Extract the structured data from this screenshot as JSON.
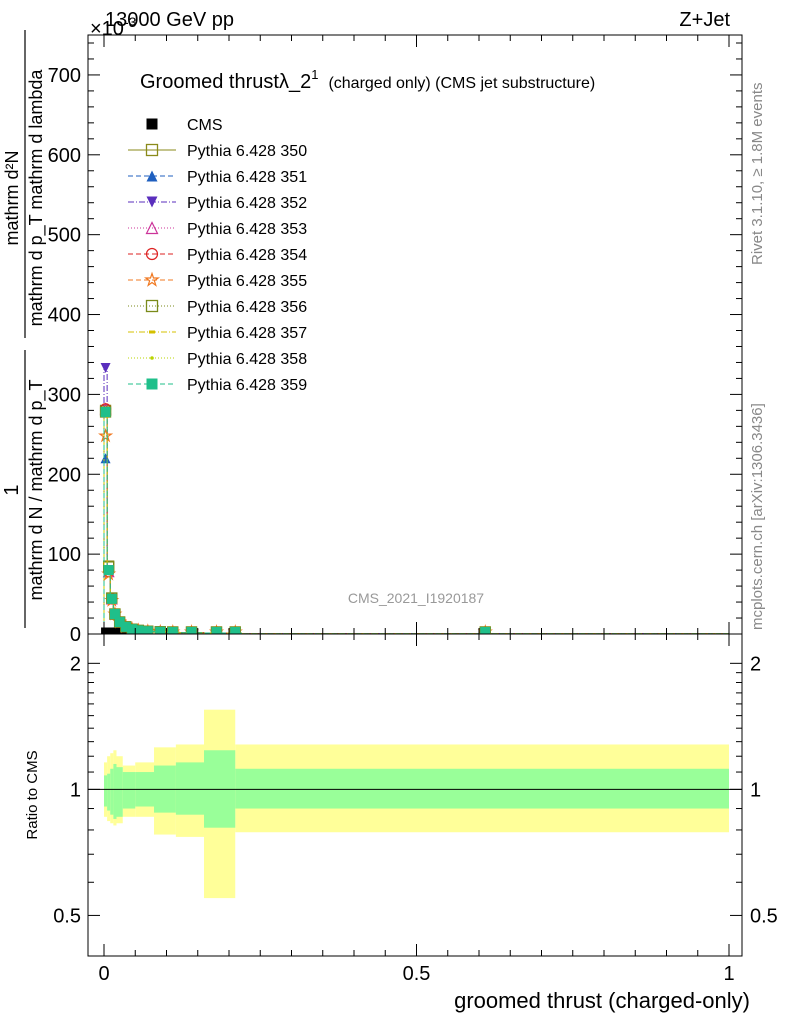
{
  "header": {
    "left": "13000 GeV pp",
    "right": "Z+Jet",
    "y_multiplier": "×10",
    "y_multiplier_exp": "-3"
  },
  "side_text": {
    "rivet": "Rivet 3.1.10, ≥ 1.8M events",
    "mcplots": "mcplots.cern.ch [arXiv:1306.3436]"
  },
  "watermark": "CMS_2021_I1920187",
  "legend": {
    "title": "Groomed thrustλ_2",
    "title_sup": "1",
    "title_suffix": "(charged only) (CMS jet substructure)",
    "entries": [
      {
        "label": "CMS",
        "color": "#000000",
        "marker": "square-filled",
        "dash": "none"
      },
      {
        "label": "Pythia 6.428 350",
        "color": "#8a8a1a",
        "marker": "square-open",
        "dash": "solid"
      },
      {
        "label": "Pythia 6.428 351",
        "color": "#1f5fbf",
        "marker": "triangle-up",
        "dash": "dashed"
      },
      {
        "label": "Pythia 6.428 352",
        "color": "#5a2ebd",
        "marker": "triangle-down",
        "dash": "dashdot"
      },
      {
        "label": "Pythia 6.428 353",
        "color": "#cc3399",
        "marker": "triangle-open",
        "dash": "dotted"
      },
      {
        "label": "Pythia 6.428 354",
        "color": "#dd2222",
        "marker": "circle-open",
        "dash": "dashed"
      },
      {
        "label": "Pythia 6.428 355",
        "color": "#f07820",
        "marker": "star",
        "dash": "dashed"
      },
      {
        "label": "Pythia 6.428 356",
        "color": "#7a8a1a",
        "marker": "square-open",
        "dash": "dotted"
      },
      {
        "label": "Pythia 6.428 357",
        "color": "#d4c000",
        "marker": "dash",
        "dash": "dashdot"
      },
      {
        "label": "Pythia 6.428 358",
        "color": "#b8d400",
        "marker": "dot",
        "dash": "dotted"
      },
      {
        "label": "Pythia 6.428 359",
        "color": "#1fbf8a",
        "marker": "square-filled",
        "dash": "dashed"
      }
    ]
  },
  "chart_data": [
    {
      "type": "scatter",
      "panel": "main",
      "ylabel": "1 / mathrm d N / mathrm d p_T mathrm d^2N / mathrm d p_T mathrm d lambda",
      "ylabel_numerator": "1",
      "ylabel_denominator": "mathrm d N / mathrm d p_T",
      "ylabel_right_num": "mathrm d²N",
      "ylabel_right_den": "mathrm d p_T mathrm d lambda",
      "xlim": [
        0,
        1
      ],
      "ylim": [
        0,
        750
      ],
      "y_ticks": [
        "0",
        "100",
        "200",
        "300",
        "400",
        "500",
        "600",
        "700"
      ],
      "y_tick_values": [
        0,
        100,
        200,
        300,
        400,
        500,
        600,
        700
      ],
      "x_ticks_values": [
        0,
        0.5,
        1
      ],
      "bin_edges": [
        0,
        0.005,
        0.01,
        0.015,
        0.02,
        0.03,
        0.04,
        0.05,
        0.06,
        0.08,
        0.1,
        0.12,
        0.16,
        0.2,
        0.22,
        1.0
      ],
      "series": [
        {
          "name": "CMS",
          "values": [
            0.5,
            0.4,
            0.3,
            0.2,
            0.2,
            0.1,
            0.1,
            0.1,
            0.05,
            0.05,
            0.02,
            0.02,
            0.01,
            0.01,
            0.005
          ]
        },
        {
          "name": "Pythia 6.428 350",
          "values": [
            280,
            85,
            45,
            25,
            15,
            9,
            6,
            4.5,
            3.5,
            2.8,
            2.2,
            1.6,
            1.2,
            0.9,
            0.3
          ]
        },
        {
          "name": "Pythia 6.428 351",
          "values": [
            220,
            80,
            44,
            25,
            15,
            9,
            6,
            4.5,
            3.5,
            2.8,
            2.2,
            1.6,
            1.2,
            0.9,
            0.3
          ]
        },
        {
          "name": "Pythia 6.428 352",
          "values": [
            333,
            80,
            44,
            25,
            15,
            9,
            6,
            4.5,
            3.5,
            2.8,
            2.2,
            1.6,
            1.2,
            0.9,
            0.3
          ]
        },
        {
          "name": "Pythia 6.428 353",
          "values": [
            282,
            78,
            44,
            25,
            15,
            9,
            6,
            4.5,
            3.5,
            2.8,
            2.2,
            1.6,
            1.2,
            0.9,
            0.3
          ]
        },
        {
          "name": "Pythia 6.428 354",
          "values": [
            282,
            78,
            44,
            25,
            15,
            9,
            6,
            4.5,
            3.5,
            2.8,
            2.2,
            1.6,
            1.2,
            0.9,
            0.3
          ]
        },
        {
          "name": "Pythia 6.428 355",
          "values": [
            248,
            75,
            42,
            25,
            15,
            9,
            6,
            4.5,
            3.5,
            2.8,
            2.2,
            1.6,
            1.2,
            0.9,
            0.3
          ]
        },
        {
          "name": "Pythia 6.428 356",
          "values": [
            278,
            84,
            45,
            25,
            15,
            9,
            6,
            4.5,
            3.5,
            2.8,
            2.2,
            1.6,
            1.2,
            0.9,
            0.3
          ]
        },
        {
          "name": "Pythia 6.428 357",
          "values": [
            280,
            80,
            44,
            25,
            15,
            9,
            6,
            4.5,
            3.5,
            2.8,
            2.2,
            1.6,
            1.2,
            0.9,
            0.3
          ]
        },
        {
          "name": "Pythia 6.428 358",
          "values": [
            280,
            80,
            44,
            25,
            15,
            9,
            6,
            4.5,
            3.5,
            2.8,
            2.2,
            1.6,
            1.2,
            0.9,
            0.3
          ]
        },
        {
          "name": "Pythia 6.428 359",
          "values": [
            278,
            80,
            44,
            25,
            15,
            9,
            6,
            4.5,
            3.5,
            2.8,
            2.2,
            1.6,
            1.2,
            0.9,
            0.3
          ]
        }
      ]
    },
    {
      "type": "area",
      "panel": "ratio",
      "ylabel": "Ratio to CMS",
      "xlabel": "groomed thrust (charged-only)",
      "xlim": [
        0,
        1
      ],
      "ylim": [
        0.4,
        2.35
      ],
      "log_y": true,
      "y_ticks": [
        "0.5",
        "1",
        "2"
      ],
      "y_tick_values": [
        0.5,
        1,
        2
      ],
      "x_ticks": [
        "0",
        "0.5",
        "1"
      ],
      "x_tick_values": [
        0,
        0.5,
        1
      ],
      "bin_edges": [
        0,
        0.005,
        0.01,
        0.015,
        0.02,
        0.03,
        0.05,
        0.08,
        0.115,
        0.16,
        0.21,
        1.0
      ],
      "band_inner": [
        [
          0.91,
          1.08
        ],
        [
          0.89,
          1.09
        ],
        [
          0.87,
          1.12
        ],
        [
          0.85,
          1.15
        ],
        [
          0.86,
          1.13
        ],
        [
          0.9,
          1.1
        ],
        [
          0.91,
          1.1
        ],
        [
          0.88,
          1.14
        ],
        [
          0.87,
          1.16
        ],
        [
          0.81,
          1.24
        ],
        [
          0.9,
          1.12
        ]
      ],
      "band_outer": [
        [
          0.86,
          1.16
        ],
        [
          0.84,
          1.2
        ],
        [
          0.83,
          1.22
        ],
        [
          0.82,
          1.24
        ],
        [
          0.83,
          1.2
        ],
        [
          0.86,
          1.14
        ],
        [
          0.86,
          1.16
        ],
        [
          0.78,
          1.26
        ],
        [
          0.77,
          1.28
        ],
        [
          0.55,
          1.55
        ],
        [
          0.79,
          1.28
        ]
      ],
      "reference": 1
    }
  ],
  "colors": {
    "band_inner": "#99ff99",
    "band_outer": "#ffff99",
    "side_text": "#888888",
    "watermark": "#999999"
  }
}
